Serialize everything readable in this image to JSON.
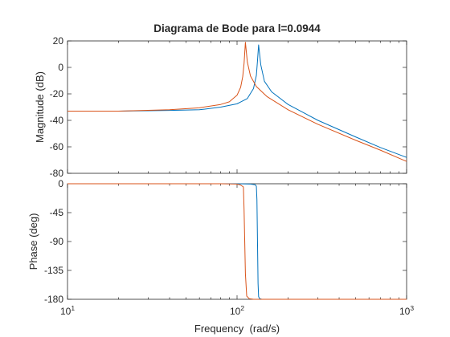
{
  "chart_data": {
    "type": "line",
    "title": "Diagrama de Bode para l=0.0944",
    "xlabel": "Frequency  (rad/s)",
    "xscale": "log",
    "xlim": [
      10,
      1000
    ],
    "x_tick_labels": [
      {
        "base": "10",
        "exp": "1"
      },
      {
        "base": "10",
        "exp": "2"
      },
      {
        "base": "10",
        "exp": "3"
      }
    ],
    "grid": false,
    "colors": {
      "series_blue": "#0072BD",
      "series_orange": "#D95319",
      "axes": "#262626"
    },
    "subplots": [
      {
        "name": "magnitude",
        "ylabel": "Magnitude (dB)",
        "ylim": [
          -80,
          20
        ],
        "yticks": [
          20,
          0,
          -20,
          -40,
          -60,
          -80
        ],
        "series": [
          {
            "color": "#0072BD",
            "x": [
              10,
              20,
              40,
              60,
              80,
              100,
              115,
              125,
              130,
              132,
              134,
              138,
              145,
              160,
              200,
              300,
              500,
              700,
              1000
            ],
            "y": [
              -33,
              -33,
              -32.5,
              -32,
              -30,
              -27.5,
              -23.5,
              -16,
              -6,
              5,
              17,
              2,
              -10.5,
              -18.5,
              -28,
              -40,
              -52.5,
              -60.5,
              -68
            ]
          },
          {
            "color": "#D95319",
            "x": [
              10,
              20,
              40,
              60,
              80,
              90,
              100,
              105,
              108,
              110,
              112,
              115,
              120,
              130,
              150,
              200,
              300,
              500,
              700,
              1000
            ],
            "y": [
              -33,
              -33,
              -32,
              -30.5,
              -28,
              -26,
              -21,
              -15,
              -7,
              3,
              19,
              4,
              -6.5,
              -14.5,
              -22,
              -32,
              -43,
              -55,
              -62.5,
              -71
            ]
          }
        ]
      },
      {
        "name": "phase",
        "ylabel": "Phase (deg)",
        "ylim": [
          -180,
          0
        ],
        "yticks": [
          0,
          -45,
          -90,
          -135,
          -180
        ],
        "series": [
          {
            "color": "#0072BD",
            "x": [
              10,
              100,
              120,
              128,
              130,
              131,
              132,
              133,
              134,
              136,
              140,
              150,
              200,
              1000
            ],
            "y": [
              0,
              0,
              -0.5,
              -1.5,
              -4,
              -25,
              -90,
              -155,
              -176,
              -179,
              -180,
              -180,
              -180,
              -180
            ]
          },
          {
            "color": "#D95319",
            "x": [
              10,
              80,
              100,
              105,
              109,
              110,
              111,
              112,
              114,
              118,
              125,
              200,
              1000
            ],
            "y": [
              0,
              0,
              -0.5,
              -2,
              -5,
              -40,
              -90,
              -140,
              -175,
              -179,
              -180,
              -180,
              -180
            ]
          }
        ]
      }
    ]
  }
}
